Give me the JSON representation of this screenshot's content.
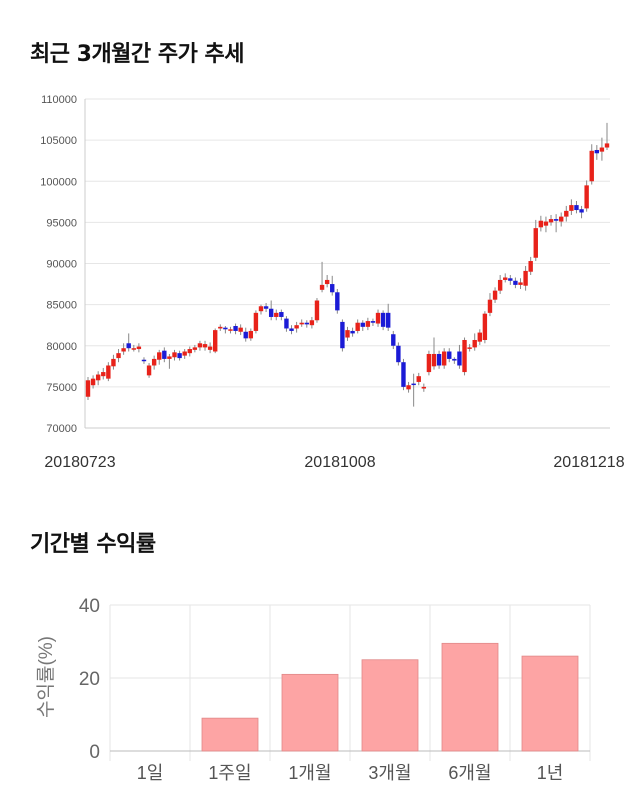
{
  "page": {
    "candle_section_title": "최근 3개월간 주가 추세",
    "returns_section_title": "기간별 수익률"
  },
  "chart_data": [
    {
      "type": "candlestick",
      "title": "최근 3개월간 주가 추세",
      "ylim": [
        70000,
        110000
      ],
      "y_ticks": [
        "110000",
        "105000",
        "100000",
        "95000",
        "90000",
        "85000",
        "80000",
        "75000",
        "70000"
      ],
      "x_tick_labels": [
        "20180723",
        "20181008",
        "20181218"
      ],
      "up_color": "#e8221a",
      "down_color": "#1b1bd6",
      "grid": true,
      "candles": [
        [
          73800,
          75800,
          73400,
          76200
        ],
        [
          75200,
          76000,
          74800,
          76400
        ],
        [
          75800,
          76500,
          75200,
          76900
        ],
        [
          76300,
          76800,
          75900,
          77300
        ],
        [
          76000,
          77600,
          75700,
          78000
        ],
        [
          77500,
          78400,
          77100,
          78900
        ],
        [
          78500,
          79100,
          78000,
          79600
        ],
        [
          79300,
          79700,
          78900,
          80300
        ],
        [
          80300,
          79700,
          79300,
          81500
        ],
        [
          79700,
          79700,
          79300,
          80100
        ],
        [
          79600,
          79900,
          79200,
          80300
        ],
        [
          78300,
          78200,
          77800,
          78600
        ],
        [
          76400,
          77600,
          76100,
          77900
        ],
        [
          77600,
          78400,
          77100,
          78800
        ],
        [
          78300,
          79200,
          77700,
          79500
        ],
        [
          79400,
          78400,
          78000,
          79800
        ],
        [
          78400,
          78700,
          77200,
          79000
        ],
        [
          78600,
          79200,
          78200,
          79500
        ],
        [
          79100,
          78500,
          78200,
          79400
        ],
        [
          78800,
          79300,
          78400,
          79600
        ],
        [
          79100,
          79600,
          78700,
          79900
        ],
        [
          79500,
          79800,
          79200,
          80100
        ],
        [
          79800,
          80300,
          79400,
          80600
        ],
        [
          79800,
          80200,
          79400,
          80600
        ],
        [
          79500,
          79900,
          79100,
          80400
        ],
        [
          79300,
          81900,
          79100,
          82100
        ],
        [
          82100,
          82300,
          81800,
          82600
        ],
        [
          82200,
          82000,
          81500,
          82400
        ],
        [
          81900,
          82000,
          81500,
          82300
        ],
        [
          82400,
          81800,
          81400,
          82700
        ],
        [
          81700,
          82200,
          81300,
          82600
        ],
        [
          81700,
          80900,
          80500,
          82200
        ],
        [
          80900,
          81800,
          80600,
          82100
        ],
        [
          81800,
          84000,
          81500,
          84300
        ],
        [
          84200,
          84800,
          83800,
          85000
        ],
        [
          84800,
          84500,
          84100,
          85200
        ],
        [
          84500,
          83500,
          83100,
          85500
        ],
        [
          83500,
          84000,
          83100,
          84400
        ],
        [
          84100,
          83500,
          83100,
          84400
        ],
        [
          83300,
          82100,
          81700,
          83600
        ],
        [
          82100,
          81800,
          81400,
          82500
        ],
        [
          82100,
          82500,
          81600,
          82900
        ],
        [
          82600,
          82800,
          82300,
          83200
        ],
        [
          82800,
          82600,
          82200,
          83100
        ],
        [
          82500,
          83100,
          82100,
          83500
        ],
        [
          83100,
          85500,
          82800,
          85800
        ],
        [
          86800,
          87400,
          86500,
          90200
        ],
        [
          87500,
          88000,
          87100,
          88600
        ],
        [
          87500,
          86500,
          86100,
          88500
        ],
        [
          86500,
          84300,
          83900,
          86900
        ],
        [
          82900,
          79700,
          79300,
          83200
        ],
        [
          81000,
          81900,
          80600,
          82300
        ],
        [
          81800,
          81500,
          81100,
          82200
        ],
        [
          81800,
          82800,
          81500,
          83200
        ],
        [
          82800,
          82300,
          81800,
          83100
        ],
        [
          82300,
          83000,
          81900,
          83400
        ],
        [
          83000,
          82800,
          82400,
          83300
        ],
        [
          82700,
          84000,
          82300,
          84400
        ],
        [
          84000,
          82300,
          81900,
          84300
        ],
        [
          84000,
          82200,
          81800,
          85100
        ],
        [
          81400,
          80000,
          79600,
          81800
        ],
        [
          80000,
          78000,
          77600,
          80400
        ],
        [
          78000,
          75000,
          74600,
          78400
        ],
        [
          74700,
          75200,
          74300,
          75600
        ],
        [
          75400,
          75300,
          72600,
          76600
        ],
        [
          75600,
          76300,
          75200,
          76700
        ],
        [
          74800,
          75000,
          74400,
          75400
        ],
        [
          76800,
          79000,
          76400,
          79400
        ],
        [
          77500,
          79000,
          77100,
          81000
        ],
        [
          79000,
          77600,
          77200,
          79400
        ],
        [
          77600,
          79300,
          77200,
          79700
        ],
        [
          79300,
          78400,
          78000,
          79700
        ],
        [
          78400,
          78200,
          77800,
          78600
        ],
        [
          79300,
          77600,
          77200,
          80100
        ],
        [
          76800,
          80700,
          76400,
          81000
        ],
        [
          79700,
          79800,
          79300,
          80200
        ],
        [
          79800,
          80700,
          79400,
          81500
        ],
        [
          80500,
          81600,
          80100,
          82000
        ],
        [
          80700,
          83900,
          80300,
          84200
        ],
        [
          84000,
          85600,
          83600,
          86400
        ],
        [
          85600,
          86700,
          85200,
          87100
        ],
        [
          86700,
          88000,
          86300,
          88600
        ],
        [
          88000,
          88300,
          87700,
          88800
        ],
        [
          88200,
          87900,
          87400,
          88600
        ],
        [
          87900,
          87400,
          87000,
          88300
        ],
        [
          87400,
          87700,
          86900,
          88200
        ],
        [
          87300,
          89100,
          86700,
          89700
        ],
        [
          89000,
          90300,
          88600,
          90800
        ],
        [
          90700,
          94300,
          90300,
          95300
        ],
        [
          94400,
          95200,
          93900,
          95800
        ],
        [
          94600,
          95100,
          93800,
          95700
        ],
        [
          95000,
          95400,
          94600,
          95900
        ],
        [
          95400,
          95200,
          93800,
          96000
        ],
        [
          95100,
          95700,
          94500,
          96200
        ],
        [
          95700,
          96400,
          95100,
          97000
        ],
        [
          96400,
          97100,
          95900,
          97800
        ],
        [
          97100,
          96500,
          96100,
          97600
        ],
        [
          96600,
          96200,
          95500,
          97000
        ],
        [
          96700,
          99500,
          96300,
          100100
        ],
        [
          100000,
          103700,
          99600,
          104500
        ],
        [
          103800,
          103400,
          102600,
          104400
        ],
        [
          103600,
          104100,
          102500,
          105300
        ],
        [
          104100,
          104600,
          103800,
          107100
        ]
      ]
    },
    {
      "type": "bar",
      "categories": [
        "1일",
        "1주일",
        "1개월",
        "3개월",
        "6개월",
        "1년"
      ],
      "values": [
        0,
        9,
        21,
        25,
        29.5,
        26
      ],
      "ylabel": "수익률(%)",
      "ylim": [
        0,
        40
      ],
      "y_ticks": [
        "40",
        "20",
        "0"
      ],
      "bar_color": "#fda4a4",
      "bar_border_color": "#e08888",
      "grid": true
    }
  ]
}
